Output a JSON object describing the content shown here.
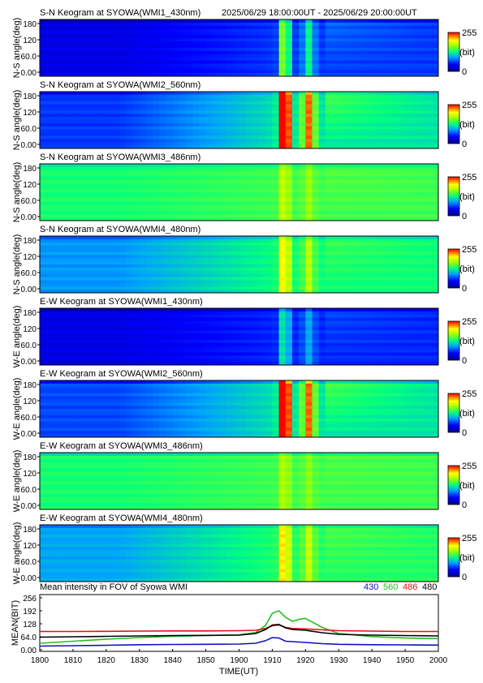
{
  "header": {
    "time_range": "2025/06/29 18:00:00UT - 2025/06/29 20:00:00UT"
  },
  "keogram": {
    "y_ticks": [
      "180",
      "120",
      "60.0",
      "0.00"
    ],
    "colorbar": {
      "max": "255",
      "unit": "(bit)",
      "min": "0"
    }
  },
  "panels": [
    {
      "title": "S-N Keogram at SYOWA(WMI1_430nm)",
      "ylabel": "N-S angle(deg)",
      "channel": "430",
      "baseline": 0.12,
      "dawn_gain": 0.1,
      "arc_level": 0.16
    },
    {
      "title": "S-N Keogram at SYOWA(WMI2_560nm)",
      "ylabel": "N-S angle(deg)",
      "channel": "560",
      "baseline": 0.22,
      "dawn_gain": 0.22,
      "arc_level": 0.3
    },
    {
      "title": "S-N Keogram at SYOWA(WMI3_486nm)",
      "ylabel": "N-S angle(deg)",
      "channel": "486",
      "baseline": 0.5,
      "dawn_gain": 0.04,
      "arc_level": 0.06
    },
    {
      "title": "S-N Keogram at SYOWA(WMI4_480nm)",
      "ylabel": "N-S angle(deg)",
      "channel": "480",
      "baseline": 0.33,
      "dawn_gain": 0.16,
      "arc_level": 0.12
    },
    {
      "title": "E-W Keogram at SYOWA(WMI1_430nm)",
      "ylabel": "W-E angle(deg)",
      "channel": "430",
      "baseline": 0.12,
      "dawn_gain": 0.08,
      "arc_level": 0.1
    },
    {
      "title": "E-W Keogram at SYOWA(WMI2_560nm)",
      "ylabel": "W-E angle(deg)",
      "channel": "560",
      "baseline": 0.24,
      "dawn_gain": 0.2,
      "arc_level": 0.3
    },
    {
      "title": "E-W Keogram at SYOWA(WMI3_486nm)",
      "ylabel": "W-E angle(deg)",
      "channel": "486",
      "baseline": 0.5,
      "dawn_gain": 0.04,
      "arc_level": 0.05
    },
    {
      "title": "E-W Keogram at SYOWA(WMI4_480nm)",
      "ylabel": "W-E angle(deg)",
      "channel": "480",
      "baseline": 0.35,
      "dawn_gain": 0.16,
      "arc_level": 0.12
    }
  ],
  "chart_data": {
    "type": "line",
    "title": "Mean intensity in FOV of Syowa WMI",
    "xlabel": "TIME(UT)",
    "ylabel": "MEAN(BIT)",
    "xlim": [
      1800,
      2000
    ],
    "ylim": [
      0,
      256
    ],
    "x_ticks": [
      "1800",
      "1810",
      "1820",
      "1830",
      "1840",
      "1850",
      "1900",
      "1910",
      "1920",
      "1930",
      "1940",
      "1950",
      "2000"
    ],
    "y_ticks": [
      "256",
      "192",
      "128",
      "64.0",
      "0.00"
    ],
    "x_minutes": [
      0,
      10,
      20,
      30,
      40,
      50,
      60,
      65,
      68,
      70,
      72,
      74,
      76,
      78,
      80,
      85,
      90,
      100,
      110,
      120
    ],
    "series": [
      {
        "name": "430",
        "color": "#1010c0",
        "values": [
          18,
          20,
          22,
          25,
          26,
          27,
          28,
          32,
          45,
          60,
          58,
          42,
          40,
          38,
          36,
          30,
          27,
          25,
          24,
          23
        ]
      },
      {
        "name": "560",
        "color": "#20c020",
        "values": [
          32,
          42,
          52,
          60,
          66,
          70,
          74,
          85,
          120,
          180,
          192,
          160,
          140,
          150,
          155,
          110,
          80,
          65,
          58,
          55
        ]
      },
      {
        "name": "486",
        "color": "#e01010",
        "values": [
          90,
          90,
          91,
          92,
          93,
          93,
          94,
          96,
          105,
          118,
          122,
          110,
          105,
          104,
          103,
          98,
          94,
          92,
          90,
          90
        ]
      },
      {
        "name": "480",
        "color": "#000000",
        "values": [
          62,
          64,
          66,
          68,
          70,
          71,
          72,
          80,
          100,
          122,
          125,
          108,
          100,
          98,
          96,
          84,
          76,
          72,
          70,
          68
        ]
      }
    ]
  }
}
